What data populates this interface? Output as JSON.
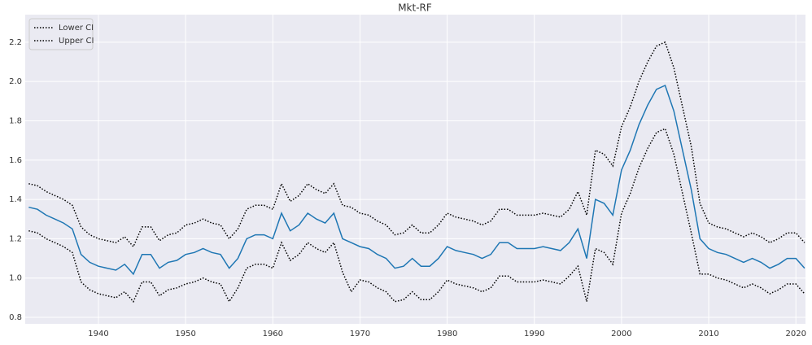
{
  "chart_data": {
    "type": "line",
    "title": "Mkt-RF",
    "x": [
      1932,
      1933,
      1934,
      1935,
      1936,
      1937,
      1938,
      1939,
      1940,
      1941,
      1942,
      1943,
      1944,
      1945,
      1946,
      1947,
      1948,
      1949,
      1950,
      1951,
      1952,
      1953,
      1954,
      1955,
      1956,
      1957,
      1958,
      1959,
      1960,
      1961,
      1962,
      1963,
      1964,
      1965,
      1966,
      1967,
      1968,
      1969,
      1970,
      1971,
      1972,
      1973,
      1974,
      1975,
      1976,
      1977,
      1978,
      1979,
      1980,
      1981,
      1982,
      1983,
      1984,
      1985,
      1986,
      1987,
      1988,
      1989,
      1990,
      1991,
      1992,
      1993,
      1994,
      1995,
      1996,
      1997,
      1998,
      1999,
      2000,
      2001,
      2002,
      2003,
      2004,
      2005,
      2006,
      2007,
      2008,
      2009,
      2010,
      2011,
      2012,
      2013,
      2014,
      2015,
      2016,
      2017,
      2018,
      2019,
      2020,
      2021
    ],
    "series": [
      {
        "color": "#1f77b4",
        "linestyle": "solid",
        "values": [
          1.36,
          1.35,
          1.32,
          1.3,
          1.28,
          1.25,
          1.12,
          1.08,
          1.06,
          1.05,
          1.04,
          1.07,
          1.02,
          1.12,
          1.12,
          1.05,
          1.08,
          1.09,
          1.12,
          1.13,
          1.15,
          1.13,
          1.12,
          1.05,
          1.1,
          1.2,
          1.22,
          1.22,
          1.2,
          1.33,
          1.24,
          1.27,
          1.33,
          1.3,
          1.28,
          1.33,
          1.2,
          1.18,
          1.16,
          1.15,
          1.12,
          1.1,
          1.05,
          1.06,
          1.1,
          1.06,
          1.06,
          1.1,
          1.16,
          1.14,
          1.13,
          1.12,
          1.1,
          1.12,
          1.18,
          1.18,
          1.15,
          1.15,
          1.15,
          1.16,
          1.15,
          1.14,
          1.18,
          1.25,
          1.1,
          1.4,
          1.38,
          1.32,
          1.55,
          1.65,
          1.78,
          1.88,
          1.96,
          1.98,
          1.85,
          1.65,
          1.45,
          1.2,
          1.15,
          1.13,
          1.12,
          1.1,
          1.08,
          1.1,
          1.08,
          1.05,
          1.07,
          1.1,
          1.1,
          1.05
        ]
      },
      {
        "name": "Lower CI",
        "color": "#000000",
        "linestyle": "dotted",
        "values": [
          1.24,
          1.23,
          1.2,
          1.18,
          1.16,
          1.13,
          0.98,
          0.94,
          0.92,
          0.91,
          0.9,
          0.93,
          0.88,
          0.98,
          0.98,
          0.91,
          0.94,
          0.95,
          0.97,
          0.98,
          1.0,
          0.98,
          0.97,
          0.88,
          0.95,
          1.05,
          1.07,
          1.07,
          1.05,
          1.18,
          1.09,
          1.12,
          1.18,
          1.15,
          1.13,
          1.18,
          1.03,
          0.93,
          0.99,
          0.98,
          0.95,
          0.93,
          0.88,
          0.89,
          0.93,
          0.89,
          0.89,
          0.93,
          0.99,
          0.97,
          0.96,
          0.95,
          0.93,
          0.95,
          1.01,
          1.01,
          0.98,
          0.98,
          0.98,
          0.99,
          0.98,
          0.97,
          1.01,
          1.06,
          0.88,
          1.15,
          1.13,
          1.07,
          1.33,
          1.43,
          1.56,
          1.66,
          1.74,
          1.76,
          1.63,
          1.43,
          1.23,
          1.02,
          1.02,
          1.0,
          0.99,
          0.97,
          0.95,
          0.97,
          0.95,
          0.92,
          0.94,
          0.97,
          0.97,
          0.92
        ]
      },
      {
        "name": "Upper CI",
        "color": "#000000",
        "linestyle": "dotted",
        "values": [
          1.48,
          1.47,
          1.44,
          1.42,
          1.4,
          1.37,
          1.26,
          1.22,
          1.2,
          1.19,
          1.18,
          1.21,
          1.16,
          1.26,
          1.26,
          1.19,
          1.22,
          1.23,
          1.27,
          1.28,
          1.3,
          1.28,
          1.27,
          1.2,
          1.25,
          1.35,
          1.37,
          1.37,
          1.35,
          1.48,
          1.39,
          1.42,
          1.48,
          1.45,
          1.43,
          1.48,
          1.37,
          1.36,
          1.33,
          1.32,
          1.29,
          1.27,
          1.22,
          1.23,
          1.27,
          1.23,
          1.23,
          1.27,
          1.33,
          1.31,
          1.3,
          1.29,
          1.27,
          1.29,
          1.35,
          1.35,
          1.32,
          1.32,
          1.32,
          1.33,
          1.32,
          1.31,
          1.35,
          1.44,
          1.32,
          1.65,
          1.63,
          1.57,
          1.77,
          1.87,
          2.0,
          2.1,
          2.18,
          2.2,
          2.07,
          1.87,
          1.67,
          1.38,
          1.28,
          1.26,
          1.25,
          1.23,
          1.21,
          1.23,
          1.21,
          1.18,
          1.2,
          1.23,
          1.23,
          1.18
        ]
      }
    ],
    "xlim": [
      1931.6,
      2021.1
    ],
    "xticks": [
      1940,
      1950,
      1960,
      1970,
      1980,
      1990,
      2000,
      2010,
      2020
    ],
    "ylim": [
      0.767,
      2.34
    ],
    "yticks": [
      0.8,
      {
        "value": 1,
        "label": "1.0"
      },
      1.2,
      1.4,
      1.6,
      1.8,
      {
        "value": 2,
        "label": "2.0"
      },
      2.2
    ],
    "grid": true,
    "legend": "upper left"
  }
}
